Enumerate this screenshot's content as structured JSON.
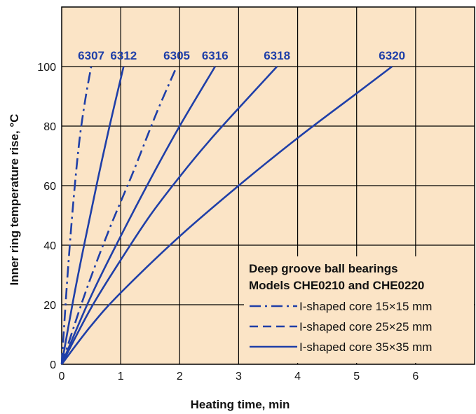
{
  "chart_data": {
    "type": "line",
    "xlabel": "Heating time, min",
    "ylabel": "Inner ring temperature rise, °C",
    "xlim": [
      0,
      7
    ],
    "ylim": [
      0,
      120
    ],
    "x_ticks": [
      "0",
      "1",
      "2",
      "3",
      "4",
      "5",
      "6"
    ],
    "y_ticks": [
      "0",
      "20",
      "40",
      "60",
      "80",
      "100"
    ],
    "grid": true,
    "background_color": "#fbe4c6",
    "line_color": "#1f3fa8",
    "legend": {
      "placement": "bottom-right",
      "title_line1": "Deep groove ball bearings",
      "title_line2": "Models CHE0210 and CHE0220",
      "entries": [
        {
          "style": "dashdot",
          "label": "I-shaped core  15×15  mm"
        },
        {
          "style": "dashed",
          "label": "I-shaped core  25×25  mm"
        },
        {
          "style": "solid",
          "label": "I-shaped core  35×35  mm"
        }
      ]
    },
    "series": [
      {
        "name": "6307",
        "style": "dashdot",
        "x": [
          0,
          0.1,
          0.2,
          0.3,
          0.4,
          0.5
        ],
        "y": [
          0,
          30,
          55,
          75,
          89,
          100
        ]
      },
      {
        "name": "6312",
        "style": "solid",
        "x": [
          0,
          0.2,
          0.4,
          0.6,
          0.8,
          1.05
        ],
        "y": [
          0,
          22,
          42,
          61,
          79,
          100
        ]
      },
      {
        "name": "6305",
        "style": "dashdot",
        "x": [
          0,
          0.4,
          0.8,
          1.2,
          1.6,
          1.95
        ],
        "y": [
          0,
          24,
          45,
          64,
          84,
          100
        ]
      },
      {
        "name": "6316",
        "style": "solid",
        "x": [
          0,
          0.5,
          1.0,
          1.5,
          2.0,
          2.6
        ],
        "y": [
          0,
          23,
          43,
          62,
          80,
          100
        ]
      },
      {
        "name": "6318",
        "style": "solid",
        "x": [
          0,
          0.5,
          1.0,
          1.5,
          2.0,
          2.5,
          3.0,
          3.65
        ],
        "y": [
          0,
          19,
          35,
          50,
          63,
          75,
          86,
          100
        ]
      },
      {
        "name": "6320",
        "style": "solid",
        "x": [
          0,
          0.5,
          1.0,
          2.0,
          3.0,
          4.0,
          5.0,
          5.6
        ],
        "y": [
          0,
          13,
          24,
          43,
          60,
          76,
          91,
          100
        ]
      }
    ]
  }
}
